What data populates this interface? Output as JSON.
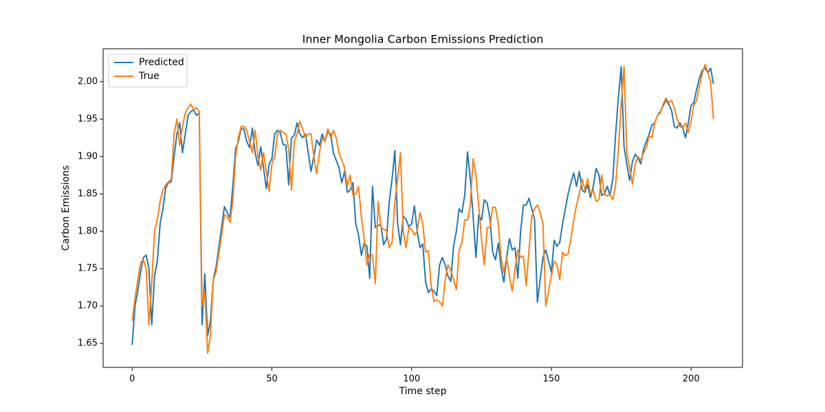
{
  "chart_data": {
    "type": "line",
    "title": "Inner Mongolia Carbon Emissions Prediction",
    "x_label": "Time step",
    "y_label": "Carbon Emissions",
    "xlim": [
      -10.4,
      218.4
    ],
    "ylim": [
      1.618,
      2.044
    ],
    "xticks": [
      0,
      50,
      100,
      150,
      200
    ],
    "yticks": [
      1.65,
      {
        "value": 1.7,
        "label": "1.70"
      },
      1.75,
      {
        "value": 1.8,
        "label": "1.80"
      },
      1.85,
      {
        "value": 1.9,
        "label": "1.90"
      },
      1.95,
      {
        "value": 2.0,
        "label": "2.00"
      }
    ],
    "legend": "upper left",
    "x": [
      0,
      1,
      2,
      3,
      4,
      5,
      6,
      7,
      8,
      9,
      10,
      11,
      12,
      13,
      14,
      15,
      16,
      17,
      18,
      19,
      20,
      21,
      22,
      23,
      24,
      25,
      26,
      27,
      28,
      29,
      30,
      31,
      32,
      33,
      34,
      35,
      36,
      37,
      38,
      39,
      40,
      41,
      42,
      43,
      44,
      45,
      46,
      47,
      48,
      49,
      50,
      51,
      52,
      53,
      54,
      55,
      56,
      57,
      58,
      59,
      60,
      61,
      62,
      63,
      64,
      65,
      66,
      67,
      68,
      69,
      70,
      71,
      72,
      73,
      74,
      75,
      76,
      77,
      78,
      79,
      80,
      81,
      82,
      83,
      84,
      85,
      86,
      87,
      88,
      89,
      90,
      91,
      92,
      93,
      94,
      95,
      96,
      97,
      98,
      99,
      100,
      101,
      102,
      103,
      104,
      105,
      106,
      107,
      108,
      109,
      110,
      111,
      112,
      113,
      114,
      115,
      116,
      117,
      118,
      119,
      120,
      121,
      122,
      123,
      124,
      125,
      126,
      127,
      128,
      129,
      130,
      131,
      132,
      133,
      134,
      135,
      136,
      137,
      138,
      139,
      140,
      141,
      142,
      143,
      144,
      145,
      146,
      147,
      148,
      149,
      150,
      151,
      152,
      153,
      154,
      155,
      156,
      157,
      158,
      159,
      160,
      161,
      162,
      163,
      164,
      165,
      166,
      167,
      168,
      169,
      170,
      171,
      172,
      173,
      174,
      175,
      176,
      177,
      178,
      179,
      180,
      181,
      182,
      183,
      184,
      185,
      186,
      187,
      188,
      189,
      190,
      191,
      192,
      193,
      194,
      195,
      196,
      197,
      198,
      199,
      200,
      201,
      202,
      203,
      204,
      205,
      206,
      207,
      208
    ],
    "series": [
      {
        "name": "Predicted",
        "color": "#1f77b4",
        "values": [
          1.648,
          1.7,
          1.72,
          1.745,
          1.765,
          1.768,
          1.75,
          1.675,
          1.74,
          1.76,
          1.81,
          1.83,
          1.858,
          1.865,
          1.866,
          1.9,
          1.93,
          1.945,
          1.905,
          1.93,
          1.955,
          1.96,
          1.962,
          1.955,
          1.958,
          1.675,
          1.743,
          1.66,
          1.68,
          1.735,
          1.752,
          1.778,
          1.805,
          1.833,
          1.825,
          1.818,
          1.86,
          1.91,
          1.92,
          1.938,
          1.936,
          1.92,
          1.912,
          1.938,
          1.905,
          1.888,
          1.913,
          1.885,
          1.857,
          1.89,
          1.897,
          1.93,
          1.935,
          1.932,
          1.916,
          1.915,
          1.862,
          1.925,
          1.928,
          1.945,
          1.93,
          1.925,
          1.93,
          1.905,
          1.88,
          1.9,
          1.922,
          1.915,
          1.93,
          1.92,
          1.933,
          1.93,
          1.905,
          1.895,
          1.885,
          1.865,
          1.88,
          1.852,
          1.855,
          1.865,
          1.81,
          1.795,
          1.768,
          1.784,
          1.78,
          1.737,
          1.86,
          1.805,
          1.808,
          1.808,
          1.782,
          1.79,
          1.84,
          1.87,
          1.908,
          1.81,
          1.782,
          1.82,
          1.816,
          1.806,
          1.81,
          1.834,
          1.8,
          1.778,
          1.783,
          1.732,
          1.718,
          1.723,
          1.72,
          1.714,
          1.755,
          1.765,
          1.755,
          1.74,
          1.733,
          1.78,
          1.8,
          1.83,
          1.825,
          1.848,
          1.906,
          1.87,
          1.82,
          1.765,
          1.822,
          1.815,
          1.842,
          1.838,
          1.818,
          1.772,
          1.762,
          1.784,
          1.752,
          1.732,
          1.765,
          1.79,
          1.775,
          1.778,
          1.737,
          1.8,
          1.835,
          1.835,
          1.844,
          1.83,
          1.815,
          1.705,
          1.735,
          1.765,
          1.775,
          1.76,
          1.745,
          1.788,
          1.78,
          1.785,
          1.81,
          1.83,
          1.85,
          1.865,
          1.878,
          1.86,
          1.88,
          1.855,
          1.852,
          1.862,
          1.845,
          1.86,
          1.884,
          1.876,
          1.848,
          1.85,
          1.86,
          1.848,
          1.87,
          1.93,
          1.98,
          2.02,
          1.913,
          1.89,
          1.868,
          1.893,
          1.903,
          1.898,
          1.89,
          1.91,
          1.92,
          1.93,
          1.942,
          1.945,
          1.955,
          1.96,
          1.968,
          1.975,
          1.97,
          1.962,
          1.94,
          1.938,
          1.945,
          1.938,
          1.925,
          1.945,
          1.968,
          1.972,
          1.99,
          2.005,
          2.015,
          2.018,
          2.012,
          2.018,
          1.997
        ]
      },
      {
        "name": "True",
        "color": "#ff7f0e",
        "values": [
          1.68,
          1.71,
          1.735,
          1.758,
          1.762,
          1.75,
          1.675,
          1.73,
          1.8,
          1.815,
          1.84,
          1.855,
          1.862,
          1.866,
          1.87,
          1.93,
          1.95,
          1.915,
          1.94,
          1.958,
          1.965,
          1.97,
          1.962,
          1.965,
          1.96,
          1.7,
          1.72,
          1.637,
          1.66,
          1.735,
          1.745,
          1.77,
          1.795,
          1.822,
          1.82,
          1.812,
          1.84,
          1.9,
          1.925,
          1.94,
          1.94,
          1.935,
          1.92,
          1.905,
          1.935,
          1.9,
          1.882,
          1.905,
          1.88,
          1.853,
          1.89,
          1.9,
          1.93,
          1.935,
          1.932,
          1.93,
          1.91,
          1.855,
          1.92,
          1.93,
          1.947,
          1.937,
          1.925,
          1.93,
          1.93,
          1.9,
          1.877,
          1.905,
          1.925,
          1.92,
          1.937,
          1.925,
          1.935,
          1.925,
          1.905,
          1.895,
          1.885,
          1.86,
          1.875,
          1.848,
          1.85,
          1.86,
          1.82,
          1.79,
          1.755,
          1.77,
          1.768,
          1.73,
          1.84,
          1.805,
          1.803,
          1.8,
          1.778,
          1.785,
          1.84,
          1.87,
          1.905,
          1.8,
          1.778,
          1.805,
          1.803,
          1.795,
          1.8,
          1.825,
          1.81,
          1.772,
          1.774,
          1.727,
          1.706,
          1.708,
          1.706,
          1.7,
          1.735,
          1.755,
          1.748,
          1.735,
          1.722,
          1.775,
          1.785,
          1.815,
          1.815,
          1.835,
          1.897,
          1.875,
          1.835,
          1.79,
          1.755,
          1.805,
          1.805,
          1.832,
          1.832,
          1.81,
          1.765,
          1.745,
          1.765,
          1.74,
          1.72,
          1.75,
          1.775,
          1.765,
          1.767,
          1.727,
          1.775,
          1.82,
          1.83,
          1.835,
          1.825,
          1.81,
          1.7,
          1.72,
          1.74,
          1.76,
          1.755,
          1.735,
          1.772,
          1.767,
          1.77,
          1.79,
          1.815,
          1.835,
          1.85,
          1.87,
          1.855,
          1.87,
          1.85,
          1.855,
          1.84,
          1.842,
          1.875,
          1.85,
          1.847,
          1.85,
          1.842,
          1.862,
          1.91,
          1.97,
          2.02,
          1.905,
          1.885,
          1.863,
          1.89,
          1.9,
          1.895,
          1.905,
          1.912,
          1.928,
          1.925,
          1.945,
          1.955,
          1.958,
          1.97,
          1.978,
          1.972,
          1.975,
          1.965,
          1.95,
          1.94,
          1.938,
          1.945,
          1.932,
          1.948,
          1.968,
          1.975,
          1.995,
          2.01,
          2.023,
          2.012,
          2.0,
          1.95
        ]
      }
    ]
  }
}
